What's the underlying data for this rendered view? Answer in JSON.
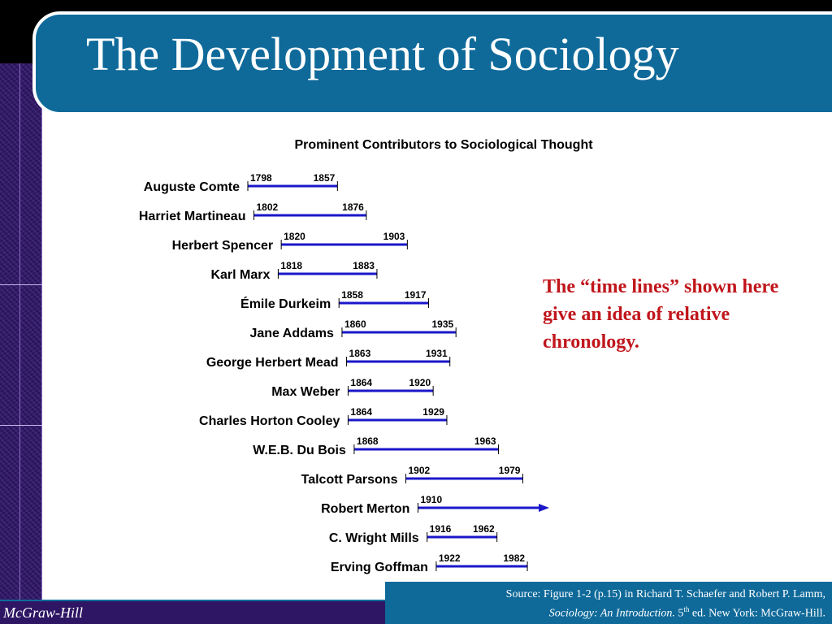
{
  "slide": {
    "title": "The Development of Sociology",
    "note": "The “time lines” shown here give an idea of relative chronology.",
    "publisher": "McGraw-Hill",
    "source": {
      "line1": "Source: Figure 1-2 (p.15) in Richard T. Schaefer and Robert P. Lamm,",
      "book": "Sociology: An Introduction.",
      "edition_num": "5",
      "edition_sup": "th",
      "edition_rest": " ed. New York: McGraw-Hill."
    }
  },
  "chart_data": {
    "type": "timeline",
    "title": "Prominent Contributors to Sociological Thought",
    "people": [
      {
        "name": "Auguste Comte",
        "start": 1798,
        "end": 1857
      },
      {
        "name": "Harriet Martineau",
        "start": 1802,
        "end": 1876
      },
      {
        "name": "Herbert Spencer",
        "start": 1820,
        "end": 1903
      },
      {
        "name": "Karl Marx",
        "start": 1818,
        "end": 1883
      },
      {
        "name": "Émile Durkeim",
        "start": 1858,
        "end": 1917
      },
      {
        "name": "Jane Addams",
        "start": 1860,
        "end": 1935
      },
      {
        "name": "George Herbert Mead",
        "start": 1863,
        "end": 1931
      },
      {
        "name": "Max Weber",
        "start": 1864,
        "end": 1920
      },
      {
        "name": "Charles Horton Cooley",
        "start": 1864,
        "end": 1929
      },
      {
        "name": "W.E.B. Du Bois",
        "start": 1868,
        "end": 1963
      },
      {
        "name": "Talcott Parsons",
        "start": 1902,
        "end": 1979
      },
      {
        "name": "Robert Merton",
        "start": 1910,
        "end": null,
        "ongoing": true
      },
      {
        "name": "C. Wright Mills",
        "start": 1916,
        "end": 1962
      },
      {
        "name": "Erving Goffman",
        "start": 1922,
        "end": 1982
      }
    ],
    "bar_color": "#1a17c9"
  }
}
